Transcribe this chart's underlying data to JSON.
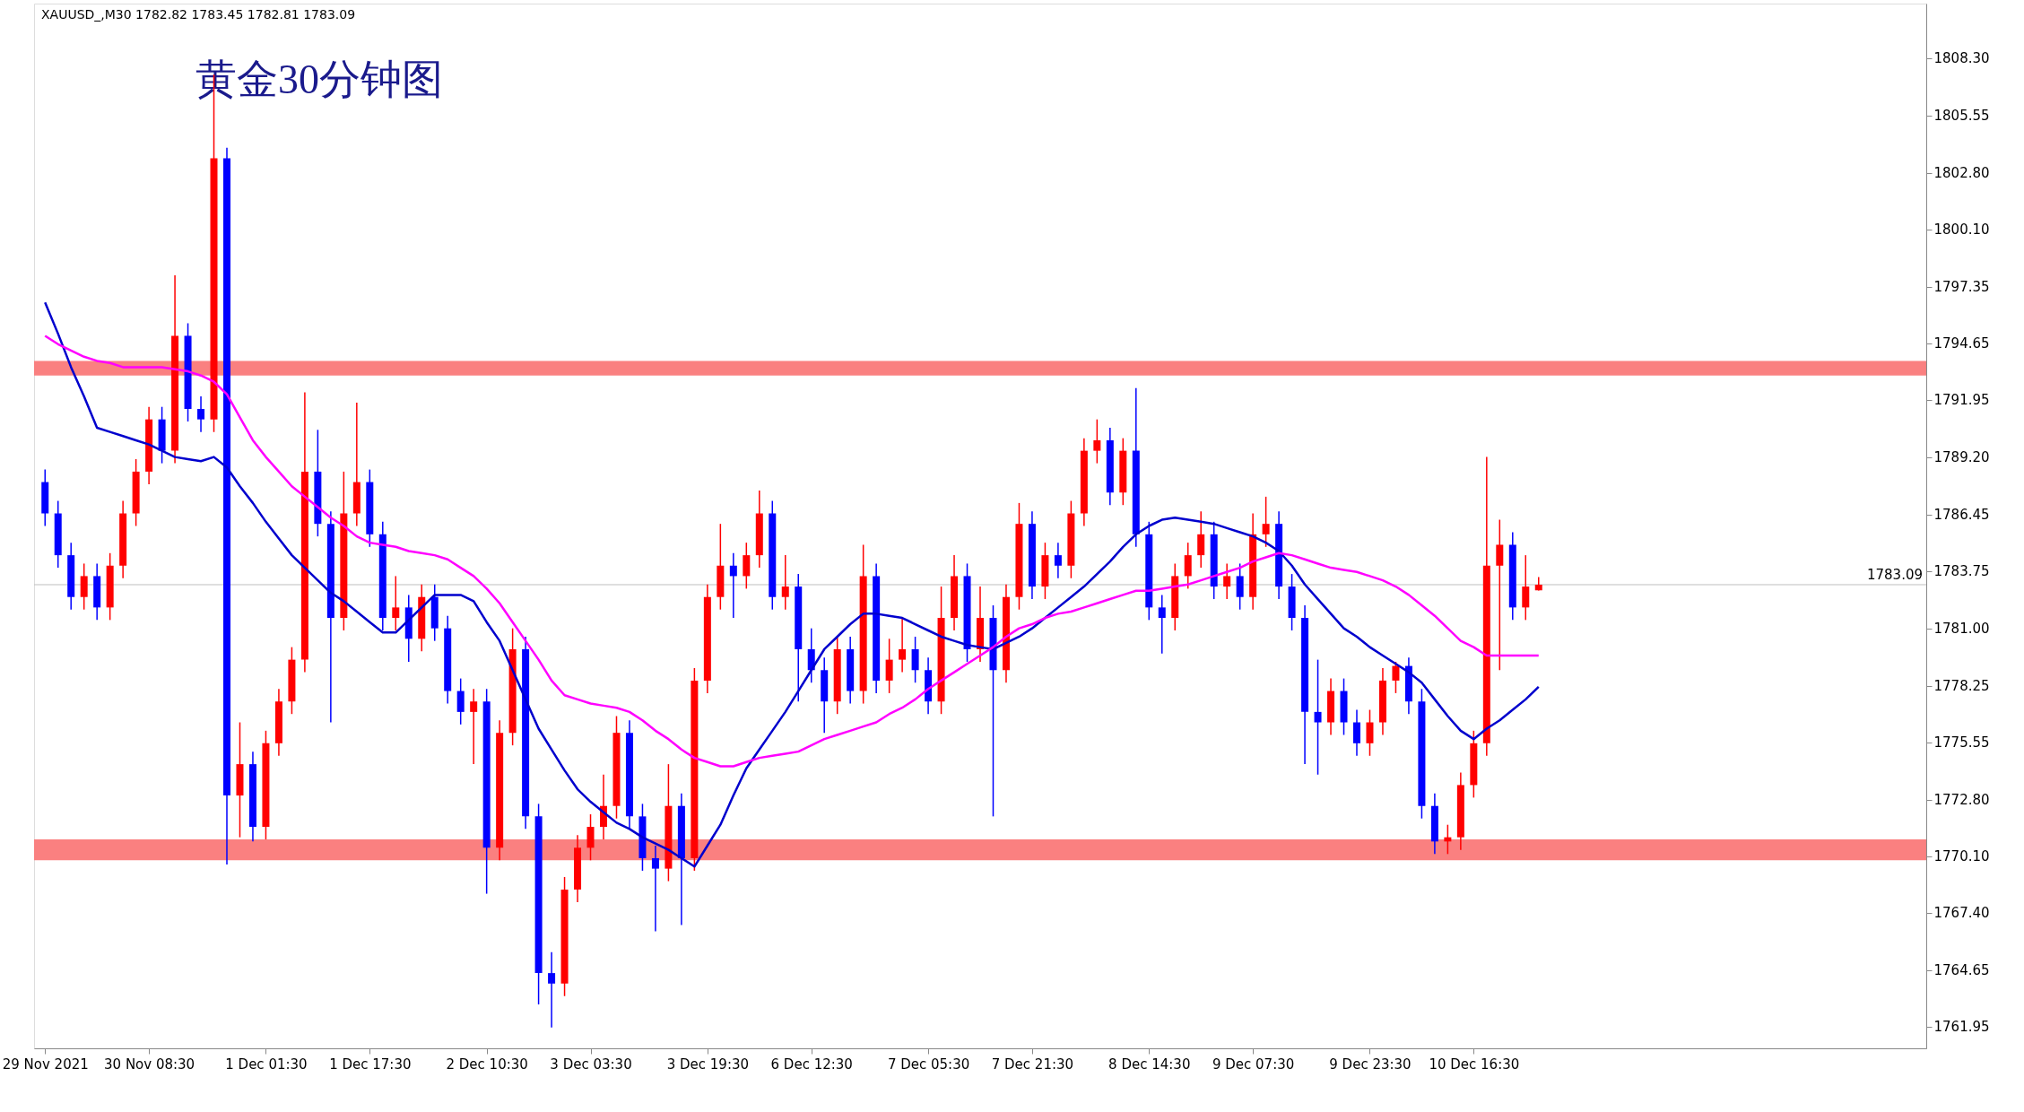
{
  "chart_data": {
    "type": "candlestick",
    "title": "黄金30分钟图",
    "annotations": [
      "XAUUSD_,M30  1782.82 1783.45 1782.81 1783.09"
    ],
    "categories": [
      "29 Nov 2021",
      null,
      null,
      null,
      null,
      null,
      null,
      null,
      "30 Nov 08:30",
      null,
      null,
      null,
      null,
      null,
      null,
      null,
      null,
      "1 Dec 01:30",
      null,
      null,
      null,
      null,
      null,
      null,
      null,
      "1 Dec 17:30",
      null,
      null,
      null,
      null,
      null,
      null,
      null,
      null,
      "2 Dec 10:30",
      null,
      null,
      null,
      null,
      null,
      null,
      null,
      "3 Dec 03:30",
      null,
      null,
      null,
      null,
      null,
      null,
      null,
      null,
      "3 Dec 19:30",
      null,
      null,
      null,
      null,
      null,
      null,
      null,
      "6 Dec 12:30",
      null,
      null,
      null,
      null,
      null,
      null,
      null,
      null,
      "7 Dec 05:30",
      null,
      null,
      null,
      null,
      null,
      null,
      null,
      "7 Dec 21:30",
      null,
      null,
      null,
      null,
      null,
      null,
      null,
      null,
      "8 Dec 14:30",
      null,
      null,
      null,
      null,
      null,
      null,
      null,
      "9 Dec 07:30",
      null,
      null,
      null,
      null,
      null,
      null,
      null,
      null,
      "9 Dec 23:30",
      null,
      null,
      null,
      null,
      null,
      null,
      null,
      "10 Dec 16:30",
      null,
      null,
      null,
      null,
      null
    ],
    "ohlc": [
      [
        1788.0,
        1788.6,
        1785.9,
        1786.5
      ],
      [
        1786.5,
        1787.1,
        1783.9,
        1784.5
      ],
      [
        1784.5,
        1785.1,
        1781.9,
        1782.5
      ],
      [
        1782.5,
        1784.1,
        1781.9,
        1783.5
      ],
      [
        1783.5,
        1784.1,
        1781.4,
        1782.0
      ],
      [
        1782.0,
        1784.6,
        1781.4,
        1784.0
      ],
      [
        1784.0,
        1787.1,
        1783.4,
        1786.5
      ],
      [
        1786.5,
        1789.1,
        1785.9,
        1788.5
      ],
      [
        1788.5,
        1791.6,
        1787.9,
        1791.0
      ],
      [
        1791.0,
        1791.6,
        1788.9,
        1789.5
      ],
      [
        1789.5,
        1797.9,
        1788.9,
        1795.0
      ],
      [
        1795.0,
        1795.6,
        1790.9,
        1791.5
      ],
      [
        1791.5,
        1792.1,
        1790.4,
        1791.0
      ],
      [
        1791.0,
        1807.5,
        1790.4,
        1803.5
      ],
      [
        1803.5,
        1804.0,
        1769.7,
        1773.0
      ],
      [
        1773.0,
        1776.5,
        1771.0,
        1774.5
      ],
      [
        1774.5,
        1775.1,
        1770.8,
        1771.5
      ],
      [
        1771.5,
        1776.1,
        1770.9,
        1775.5
      ],
      [
        1775.5,
        1778.1,
        1774.9,
        1777.5
      ],
      [
        1777.5,
        1780.1,
        1776.9,
        1779.5
      ],
      [
        1779.5,
        1792.3,
        1778.9,
        1788.5
      ],
      [
        1788.5,
        1790.5,
        1785.4,
        1786.0
      ],
      [
        1786.0,
        1786.6,
        1776.5,
        1781.5
      ],
      [
        1781.5,
        1788.5,
        1780.9,
        1786.5
      ],
      [
        1786.5,
        1791.8,
        1785.9,
        1788.0
      ],
      [
        1788.0,
        1788.6,
        1784.9,
        1785.5
      ],
      [
        1785.5,
        1786.1,
        1780.9,
        1781.5
      ],
      [
        1781.5,
        1783.5,
        1780.9,
        1782.0
      ],
      [
        1782.0,
        1782.6,
        1779.4,
        1780.5
      ],
      [
        1780.5,
        1783.1,
        1779.9,
        1782.5
      ],
      [
        1782.5,
        1783.1,
        1780.4,
        1781.0
      ],
      [
        1781.0,
        1781.6,
        1777.4,
        1778.0
      ],
      [
        1778.0,
        1778.6,
        1776.4,
        1777.0
      ],
      [
        1777.0,
        1778.1,
        1774.5,
        1777.5
      ],
      [
        1777.5,
        1778.1,
        1768.3,
        1770.5
      ],
      [
        1770.5,
        1776.6,
        1769.9,
        1776.0
      ],
      [
        1776.0,
        1781.0,
        1775.4,
        1780.0
      ],
      [
        1780.0,
        1780.6,
        1771.4,
        1772.0
      ],
      [
        1772.0,
        1772.6,
        1763.0,
        1764.5
      ],
      [
        1764.5,
        1765.5,
        1761.9,
        1764.0
      ],
      [
        1764.0,
        1769.1,
        1763.4,
        1768.5
      ],
      [
        1768.5,
        1771.1,
        1767.9,
        1770.5
      ],
      [
        1770.5,
        1772.1,
        1769.9,
        1771.5
      ],
      [
        1771.5,
        1774.0,
        1770.9,
        1772.5
      ],
      [
        1772.5,
        1776.8,
        1771.9,
        1776.0
      ],
      [
        1776.0,
        1776.6,
        1771.4,
        1772.0
      ],
      [
        1772.0,
        1772.6,
        1769.4,
        1770.0
      ],
      [
        1770.0,
        1770.6,
        1766.5,
        1769.5
      ],
      [
        1769.5,
        1774.5,
        1768.9,
        1772.5
      ],
      [
        1772.5,
        1773.1,
        1766.8,
        1770.0
      ],
      [
        1770.0,
        1779.1,
        1769.4,
        1778.5
      ],
      [
        1778.5,
        1783.1,
        1777.9,
        1782.5
      ],
      [
        1782.5,
        1786.0,
        1781.9,
        1784.0
      ],
      [
        1784.0,
        1784.6,
        1781.5,
        1783.5
      ],
      [
        1783.5,
        1785.1,
        1782.9,
        1784.5
      ],
      [
        1784.5,
        1787.6,
        1783.9,
        1786.5
      ],
      [
        1786.5,
        1787.1,
        1781.9,
        1782.5
      ],
      [
        1782.5,
        1784.5,
        1781.9,
        1783.0
      ],
      [
        1783.0,
        1783.6,
        1777.5,
        1780.0
      ],
      [
        1780.0,
        1781.0,
        1778.4,
        1779.0
      ],
      [
        1779.0,
        1779.6,
        1776.0,
        1777.5
      ],
      [
        1777.5,
        1780.6,
        1776.9,
        1780.0
      ],
      [
        1780.0,
        1780.6,
        1777.4,
        1778.0
      ],
      [
        1778.0,
        1785.0,
        1777.4,
        1783.5
      ],
      [
        1783.5,
        1784.1,
        1777.9,
        1778.5
      ],
      [
        1778.5,
        1780.5,
        1777.9,
        1779.5
      ],
      [
        1779.5,
        1781.5,
        1778.9,
        1780.0
      ],
      [
        1780.0,
        1780.6,
        1778.4,
        1779.0
      ],
      [
        1779.0,
        1779.6,
        1776.9,
        1777.5
      ],
      [
        1777.5,
        1783.0,
        1776.9,
        1781.5
      ],
      [
        1781.5,
        1784.5,
        1780.9,
        1783.5
      ],
      [
        1783.5,
        1784.1,
        1779.4,
        1780.0
      ],
      [
        1780.0,
        1783.0,
        1779.4,
        1781.5
      ],
      [
        1781.5,
        1782.1,
        1772.0,
        1779.0
      ],
      [
        1779.0,
        1783.1,
        1778.4,
        1782.5
      ],
      [
        1782.5,
        1787.0,
        1781.9,
        1786.0
      ],
      [
        1786.0,
        1786.6,
        1782.4,
        1783.0
      ],
      [
        1783.0,
        1785.1,
        1782.4,
        1784.5
      ],
      [
        1784.5,
        1785.1,
        1783.4,
        1784.0
      ],
      [
        1784.0,
        1787.1,
        1783.4,
        1786.5
      ],
      [
        1786.5,
        1790.1,
        1785.9,
        1789.5
      ],
      [
        1789.5,
        1791.0,
        1788.9,
        1790.0
      ],
      [
        1790.0,
        1790.6,
        1786.9,
        1787.5
      ],
      [
        1787.5,
        1790.1,
        1786.9,
        1789.5
      ],
      [
        1789.5,
        1792.5,
        1784.9,
        1785.5
      ],
      [
        1785.5,
        1786.1,
        1781.4,
        1782.0
      ],
      [
        1782.0,
        1782.6,
        1779.8,
        1781.5
      ],
      [
        1781.5,
        1784.1,
        1780.9,
        1783.5
      ],
      [
        1783.5,
        1785.1,
        1782.9,
        1784.5
      ],
      [
        1784.5,
        1786.6,
        1783.9,
        1785.5
      ],
      [
        1785.5,
        1786.1,
        1782.4,
        1783.0
      ],
      [
        1783.0,
        1784.1,
        1782.4,
        1783.5
      ],
      [
        1783.5,
        1784.1,
        1781.9,
        1782.5
      ],
      [
        1782.5,
        1786.5,
        1781.9,
        1785.5
      ],
      [
        1785.5,
        1787.3,
        1784.9,
        1786.0
      ],
      [
        1786.0,
        1786.6,
        1782.4,
        1783.0
      ],
      [
        1783.0,
        1783.6,
        1780.9,
        1781.5
      ],
      [
        1781.5,
        1782.1,
        1774.5,
        1777.0
      ],
      [
        1777.0,
        1779.5,
        1774.0,
        1776.5
      ],
      [
        1776.5,
        1778.6,
        1775.9,
        1778.0
      ],
      [
        1778.0,
        1778.6,
        1775.9,
        1776.5
      ],
      [
        1776.5,
        1777.1,
        1774.9,
        1775.5
      ],
      [
        1775.5,
        1777.1,
        1774.9,
        1776.5
      ],
      [
        1776.5,
        1779.1,
        1775.9,
        1778.5
      ],
      [
        1778.5,
        1779.4,
        1777.9,
        1779.2
      ],
      [
        1779.2,
        1779.6,
        1776.9,
        1777.5
      ],
      [
        1777.5,
        1778.1,
        1771.9,
        1772.5
      ],
      [
        1772.5,
        1773.1,
        1770.2,
        1770.8
      ],
      [
        1770.8,
        1771.6,
        1770.2,
        1771.0
      ],
      [
        1771.0,
        1774.1,
        1770.4,
        1773.5
      ],
      [
        1773.5,
        1776.1,
        1772.9,
        1775.5
      ],
      [
        1775.5,
        1789.2,
        1774.9,
        1784.0
      ],
      [
        1784.0,
        1786.2,
        1779.0,
        1785.0
      ],
      [
        1785.0,
        1785.6,
        1781.4,
        1782.0
      ],
      [
        1782.0,
        1784.5,
        1781.4,
        1783.0
      ],
      [
        1782.82,
        1783.45,
        1782.81,
        1783.09
      ]
    ],
    "series": [
      {
        "type": "line",
        "color": "#0000cd",
        "values": [
          1796.6,
          1795.1,
          1793.5,
          1792.1,
          1790.6,
          1790.4,
          1790.2,
          1790.0,
          1789.8,
          1789.5,
          1789.2,
          1789.1,
          1789.0,
          1789.2,
          1788.7,
          1787.8,
          1787.0,
          1786.1,
          1785.3,
          1784.5,
          1783.9,
          1783.3,
          1782.7,
          1782.3,
          1781.8,
          1781.3,
          1780.8,
          1780.8,
          1781.4,
          1782.0,
          1782.6,
          1782.6,
          1782.6,
          1782.3,
          1781.3,
          1780.4,
          1779.0,
          1777.6,
          1776.2,
          1775.2,
          1774.2,
          1773.3,
          1772.7,
          1772.2,
          1771.7,
          1771.4,
          1771.0,
          1770.7,
          1770.4,
          1770.0,
          1769.6,
          1770.6,
          1771.6,
          1773.0,
          1774.3,
          1775.2,
          1776.1,
          1777.0,
          1778.0,
          1779.0,
          1780.0,
          1780.6,
          1781.2,
          1781.7,
          1781.7,
          1781.6,
          1781.5,
          1781.2,
          1780.9,
          1780.6,
          1780.4,
          1780.2,
          1780.1,
          1780.0,
          1780.3,
          1780.6,
          1781.0,
          1781.5,
          1782.0,
          1782.5,
          1783.0,
          1783.6,
          1784.2,
          1784.9,
          1785.5,
          1785.9,
          1786.2,
          1786.3,
          1786.2,
          1786.1,
          1786.0,
          1785.8,
          1785.6,
          1785.4,
          1785.1,
          1784.7,
          1784.0,
          1783.1,
          1782.4,
          1781.7,
          1781.0,
          1780.6,
          1780.1,
          1779.7,
          1779.3,
          1778.9,
          1778.4,
          1777.6,
          1776.8,
          1776.1,
          1775.7,
          1776.2,
          1776.6,
          1777.1,
          1777.6,
          1778.2
        ]
      },
      {
        "type": "line",
        "color": "#ff00ff",
        "values": [
          1795.0,
          1794.6,
          1794.3,
          1794.0,
          1793.8,
          1793.7,
          1793.5,
          1793.5,
          1793.5,
          1793.5,
          1793.4,
          1793.3,
          1793.1,
          1792.8,
          1792.2,
          1791.1,
          1790.0,
          1789.2,
          1788.5,
          1787.8,
          1787.3,
          1786.8,
          1786.3,
          1785.9,
          1785.4,
          1785.1,
          1785.0,
          1784.9,
          1784.7,
          1784.6,
          1784.5,
          1784.3,
          1783.9,
          1783.5,
          1782.9,
          1782.2,
          1781.3,
          1780.4,
          1779.5,
          1778.5,
          1777.8,
          1777.6,
          1777.4,
          1777.3,
          1777.2,
          1777.0,
          1776.6,
          1776.1,
          1775.7,
          1775.2,
          1774.8,
          1774.6,
          1774.4,
          1774.4,
          1774.6,
          1774.8,
          1774.9,
          1775.0,
          1775.1,
          1775.4,
          1775.7,
          1775.9,
          1776.1,
          1776.3,
          1776.5,
          1776.9,
          1777.2,
          1777.6,
          1778.1,
          1778.5,
          1778.9,
          1779.3,
          1779.7,
          1780.1,
          1780.6,
          1781.0,
          1781.2,
          1781.5,
          1781.7,
          1781.8,
          1782.0,
          1782.2,
          1782.4,
          1782.6,
          1782.8,
          1782.8,
          1782.9,
          1783.0,
          1783.1,
          1783.3,
          1783.5,
          1783.7,
          1783.9,
          1784.2,
          1784.4,
          1784.6,
          1784.5,
          1784.3,
          1784.1,
          1783.9,
          1783.8,
          1783.7,
          1783.5,
          1783.3,
          1783.0,
          1782.6,
          1782.1,
          1781.6,
          1781.0,
          1780.4,
          1780.1,
          1779.7,
          1779.7,
          1779.7,
          1779.7,
          1779.7
        ]
      }
    ],
    "ylim": [
      1760.9,
      1810.9
    ],
    "yticks": [
      {
        "value": 1761.95,
        "label": "1761.95"
      },
      {
        "value": 1764.65,
        "label": "1764.65"
      },
      {
        "value": 1767.4,
        "label": "1767.40"
      },
      {
        "value": 1770.1,
        "label": "1770.10"
      },
      {
        "value": 1772.8,
        "label": "1772.80"
      },
      {
        "value": 1775.55,
        "label": "1775.55"
      },
      {
        "value": 1778.25,
        "label": "1778.25"
      },
      {
        "value": 1781.0,
        "label": "1781.00"
      },
      {
        "value": 1783.75,
        "label": "1783.75"
      },
      {
        "value": 1786.45,
        "label": "1786.45"
      },
      {
        "value": 1789.2,
        "label": "1789.20"
      },
      {
        "value": 1791.95,
        "label": "1791.95"
      },
      {
        "value": 1794.65,
        "label": "1794.65"
      },
      {
        "value": 1797.35,
        "label": "1797.35"
      },
      {
        "value": 1800.1,
        "label": "1800.10"
      },
      {
        "value": 1802.8,
        "label": "1802.80"
      },
      {
        "value": 1805.55,
        "label": "1805.55"
      },
      {
        "value": 1808.3,
        "label": "1808.30"
      }
    ],
    "bands": [
      {
        "axis": "y",
        "from": 1793.1,
        "to": 1793.8,
        "color": "#fa8080"
      },
      {
        "axis": "y",
        "from": 1769.9,
        "to": 1770.9,
        "color": "#fa8080"
      }
    ],
    "ref_lines": [
      {
        "axis": "y",
        "value": 1783.09,
        "label": "1783.09",
        "color": "#c0c0c0"
      }
    ],
    "grid": false,
    "marker": "none",
    "line_style": "solid"
  }
}
